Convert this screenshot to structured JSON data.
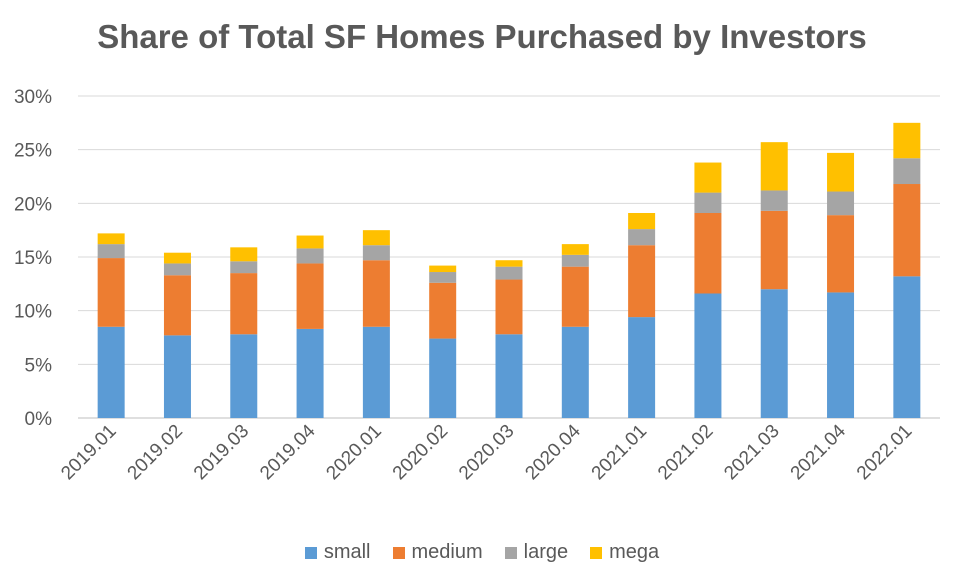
{
  "chart_data": {
    "type": "bar",
    "stacked": true,
    "title": "Share of Total SF Homes Purchased by Investors",
    "xlabel": "",
    "ylabel": "",
    "ylim": [
      0,
      30
    ],
    "y_ticks": [
      "0%",
      "5%",
      "10%",
      "15%",
      "20%",
      "25%",
      "30%"
    ],
    "grid": true,
    "legend_position": "bottom",
    "categories": [
      "2019.01",
      "2019.02",
      "2019.03",
      "2019.04",
      "2020.01",
      "2020.02",
      "2020.03",
      "2020.04",
      "2021.01",
      "2021.02",
      "2021.03",
      "2021.04",
      "2022.01"
    ],
    "series": [
      {
        "name": "small",
        "color": "#5B9BD5",
        "values": [
          8.5,
          7.7,
          7.8,
          8.3,
          8.5,
          7.4,
          7.8,
          8.5,
          9.4,
          11.6,
          12.0,
          11.7,
          13.2
        ]
      },
      {
        "name": "medium",
        "color": "#ED7D31",
        "values": [
          6.4,
          5.6,
          5.7,
          6.1,
          6.2,
          5.2,
          5.1,
          5.6,
          6.7,
          7.5,
          7.3,
          7.2,
          8.6
        ]
      },
      {
        "name": "large",
        "color": "#A5A5A5",
        "values": [
          1.3,
          1.1,
          1.1,
          1.4,
          1.4,
          1.0,
          1.2,
          1.1,
          1.5,
          1.9,
          1.9,
          2.2,
          2.4
        ]
      },
      {
        "name": "mega",
        "color": "#FFC000",
        "values": [
          1.0,
          1.0,
          1.3,
          1.2,
          1.4,
          0.6,
          0.6,
          1.0,
          1.5,
          2.8,
          4.5,
          3.6,
          3.3
        ]
      }
    ]
  }
}
